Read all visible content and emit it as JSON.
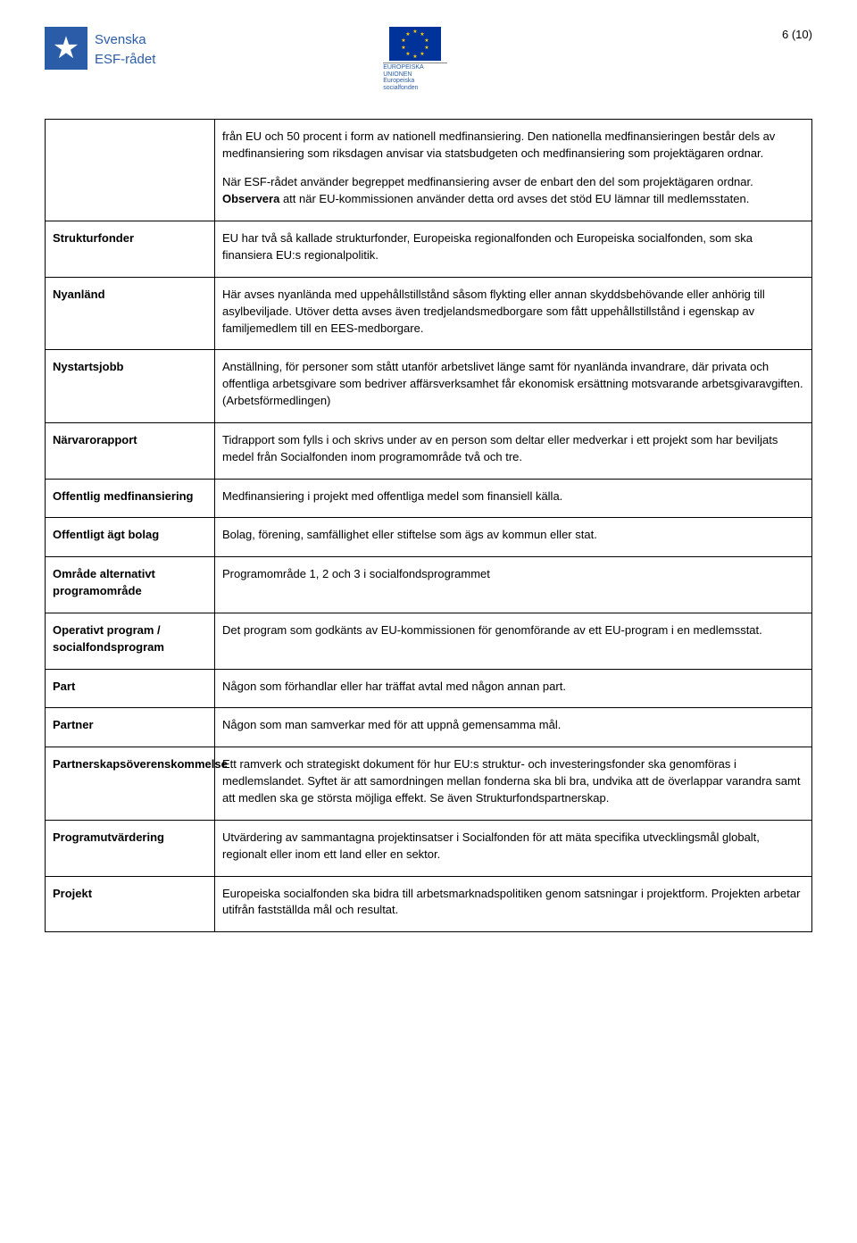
{
  "page_number": "6 (10)",
  "header": {
    "logo_left": {
      "line1": "Svenska",
      "line2": "ESF-rådet"
    },
    "eu": {
      "caption_line1": "EUROPEISKA UNIONEN",
      "caption_line2": "Europeiska socialfonden"
    }
  },
  "intro_row": {
    "term": "",
    "p1": "från EU och 50 procent i form av nationell medfinansiering. Den nationella medfinansieringen består dels av medfinansiering som riksdagen anvisar via statsbudgeten och medfinansiering som projektägaren ordnar.",
    "p2a": "När ESF-rådet använder begreppet medfinansiering avser de enbart den del som projektägaren ordnar. ",
    "p2_bold": "Observera",
    "p2b": " att när EU-kommissionen använder detta ord avses det stöd EU lämnar till medlemsstaten."
  },
  "rows": [
    {
      "term": "Strukturfonder",
      "def": "EU har två så kallade strukturfonder, Europeiska regionalfonden och Europeiska socialfonden, som ska finansiera EU:s regionalpolitik."
    },
    {
      "term": "Nyanländ",
      "def": "Här avses nyanlända med uppehållstillstånd såsom flykting eller annan skyddsbehövande eller anhörig till asylbeviljade. Utöver detta avses även tredjelandsmedborgare som fått uppehållstillstånd i egenskap av familjemedlem till en EES-medborgare."
    },
    {
      "term": "Nystartsjobb",
      "def": "Anställning, för personer som stått utanför arbetslivet länge samt för nyanlända invandrare, där privata och offentliga arbetsgivare som bedriver affärsverksamhet får ekonomisk ersättning motsvarande arbetsgivaravgiften. (Arbetsförmedlingen)"
    },
    {
      "term": "Närvarorapport",
      "def": "Tidrapport som fylls i och skrivs under av en person som deltar eller medverkar i ett projekt som har beviljats medel från Socialfonden inom programområde två och tre."
    },
    {
      "term": "Offentlig medfinansiering",
      "def": "Medfinansiering i projekt med offentliga medel som finansiell källa."
    },
    {
      "term": "Offentligt ägt bolag",
      "def": "Bolag, förening, samfällighet eller stiftelse som ägs av kommun eller stat."
    },
    {
      "term": "Område alternativt programområde",
      "def": "Programområde 1, 2 och 3 i socialfondsprogrammet"
    },
    {
      "term": "Operativt program / socialfondsprogram",
      "def": "Det program som godkänts av EU-kommissionen för genomförande av ett EU-program i en medlemsstat."
    },
    {
      "term": "Part",
      "def": "Någon som förhandlar eller har träffat avtal med någon annan part."
    },
    {
      "term": "Partner",
      "def": "Någon som man samverkar med för att uppnå gemensamma mål."
    },
    {
      "term": "Partnerskapsöverenskommelse",
      "def": "Ett ramverk och strategiskt dokument för hur EU:s struktur- och investeringsfonder ska genomföras i medlemslandet. Syftet är att samordningen mellan fonderna ska bli bra, undvika att de överlappar varandra samt att medlen ska ge största möjliga effekt. Se även Strukturfondspartnerskap."
    },
    {
      "term": "Programutvärdering",
      "def": "Utvärdering av sammantagna projektinsatser i Socialfonden för att mäta specifika utvecklingsmål globalt, regionalt eller inom ett land eller en sektor."
    },
    {
      "term": "Projekt",
      "def": "Europeiska socialfonden ska bidra till arbetsmarknadspolitiken genom satsningar i projektform. Projekten arbetar utifrån fastställda mål och resultat."
    }
  ]
}
